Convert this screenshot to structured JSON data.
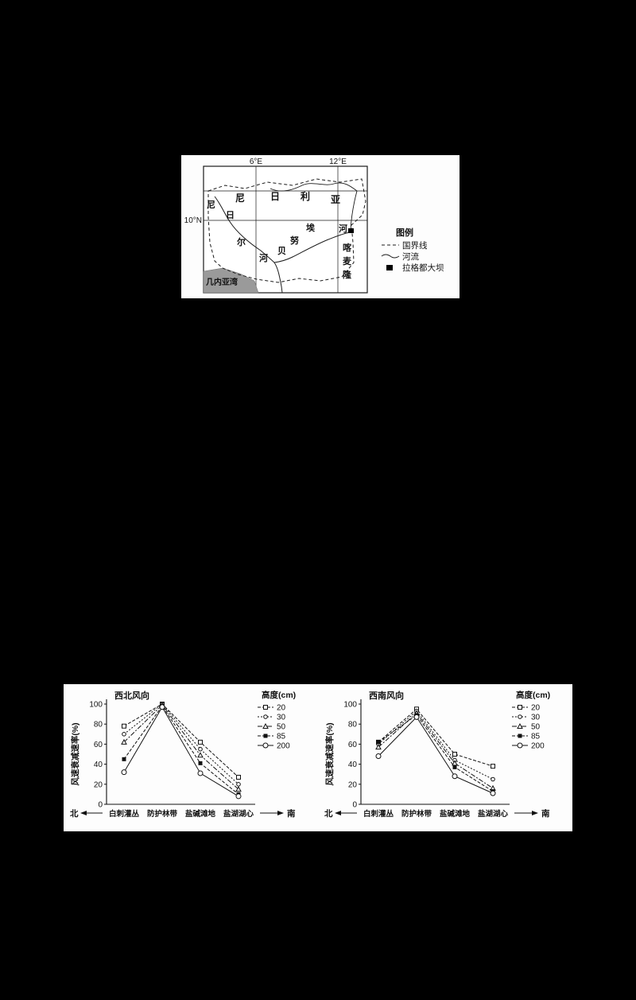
{
  "colors": {
    "background": "#000000",
    "panel": "#ffffff",
    "ink": "#1a1a1a",
    "gulf_fill": "#9a9a9a"
  },
  "map_figure": {
    "lon_labels": [
      "6°E",
      "12°E"
    ],
    "lat_label": "10°N",
    "niger_river_chars": [
      "尼",
      "日",
      "尔",
      "河"
    ],
    "nigeria_chars": [
      "尼",
      "日",
      "利",
      "亚"
    ],
    "benue_river_chars": [
      "贝",
      "努",
      "埃",
      "河"
    ],
    "cameroon_chars": [
      "喀",
      "麦",
      "隆"
    ],
    "gulf_label": "几内亚湾",
    "legend": {
      "title": "图例",
      "items": [
        {
          "symbol": "dashed-line",
          "label": "国界线"
        },
        {
          "symbol": "solid-line",
          "label": "河流"
        },
        {
          "symbol": "filled-square",
          "label": "拉格都大坝"
        }
      ]
    }
  },
  "chart_data": [
    {
      "type": "line",
      "title": "西北风向",
      "ylabel": "风速衰减速率(%)",
      "ylim": [
        0,
        100
      ],
      "yticks": [
        0,
        20,
        40,
        60,
        80,
        100
      ],
      "categories": [
        "白刺灌丛",
        "防护林带",
        "盐碱滩地",
        "盐湖湖心"
      ],
      "x_left_label": "北",
      "x_right_label": "南",
      "legend_title": "高度(cm)",
      "legend_position": "top-right",
      "grid": false,
      "series": [
        {
          "name": "20",
          "marker": "square-open",
          "dash": "4 2",
          "values": [
            78,
            100,
            62,
            27
          ]
        },
        {
          "name": "30",
          "marker": "circle-open",
          "dash": "2 2",
          "values": [
            70,
            100,
            55,
            20
          ]
        },
        {
          "name": "50",
          "marker": "triangle-open",
          "dash": "6 2 2 2",
          "values": [
            62,
            99,
            49,
            15
          ]
        },
        {
          "name": "85",
          "marker": "square-filled",
          "dash": "4 2",
          "values": [
            45,
            98,
            41,
            10
          ]
        },
        {
          "name": "200",
          "marker": "circle-open-large",
          "dash": "",
          "values": [
            32,
            97,
            31,
            8
          ]
        }
      ]
    },
    {
      "type": "line",
      "title": "西南风向",
      "ylabel": "风速衰减速率(%)",
      "ylim": [
        0,
        100
      ],
      "yticks": [
        0,
        20,
        40,
        60,
        80,
        100
      ],
      "categories": [
        "白刺灌丛",
        "防护林带",
        "盐碱滩地",
        "盐湖湖心"
      ],
      "x_left_label": "北",
      "x_right_label": "南",
      "legend_title": "高度(cm)",
      "legend_position": "top-right",
      "grid": false,
      "series": [
        {
          "name": "20",
          "marker": "square-open",
          "dash": "4 2",
          "values": [
            62,
            95,
            50,
            38
          ]
        },
        {
          "name": "30",
          "marker": "circle-open",
          "dash": "2 2",
          "values": [
            60,
            93,
            44,
            25
          ]
        },
        {
          "name": "50",
          "marker": "triangle-open",
          "dash": "6 2 2 2",
          "values": [
            57,
            91,
            41,
            16
          ]
        },
        {
          "name": "85",
          "marker": "square-filled",
          "dash": "4 2",
          "values": [
            62,
            89,
            37,
            13
          ]
        },
        {
          "name": "200",
          "marker": "circle-open-large",
          "dash": "",
          "values": [
            48,
            87,
            28,
            11
          ]
        }
      ]
    }
  ]
}
